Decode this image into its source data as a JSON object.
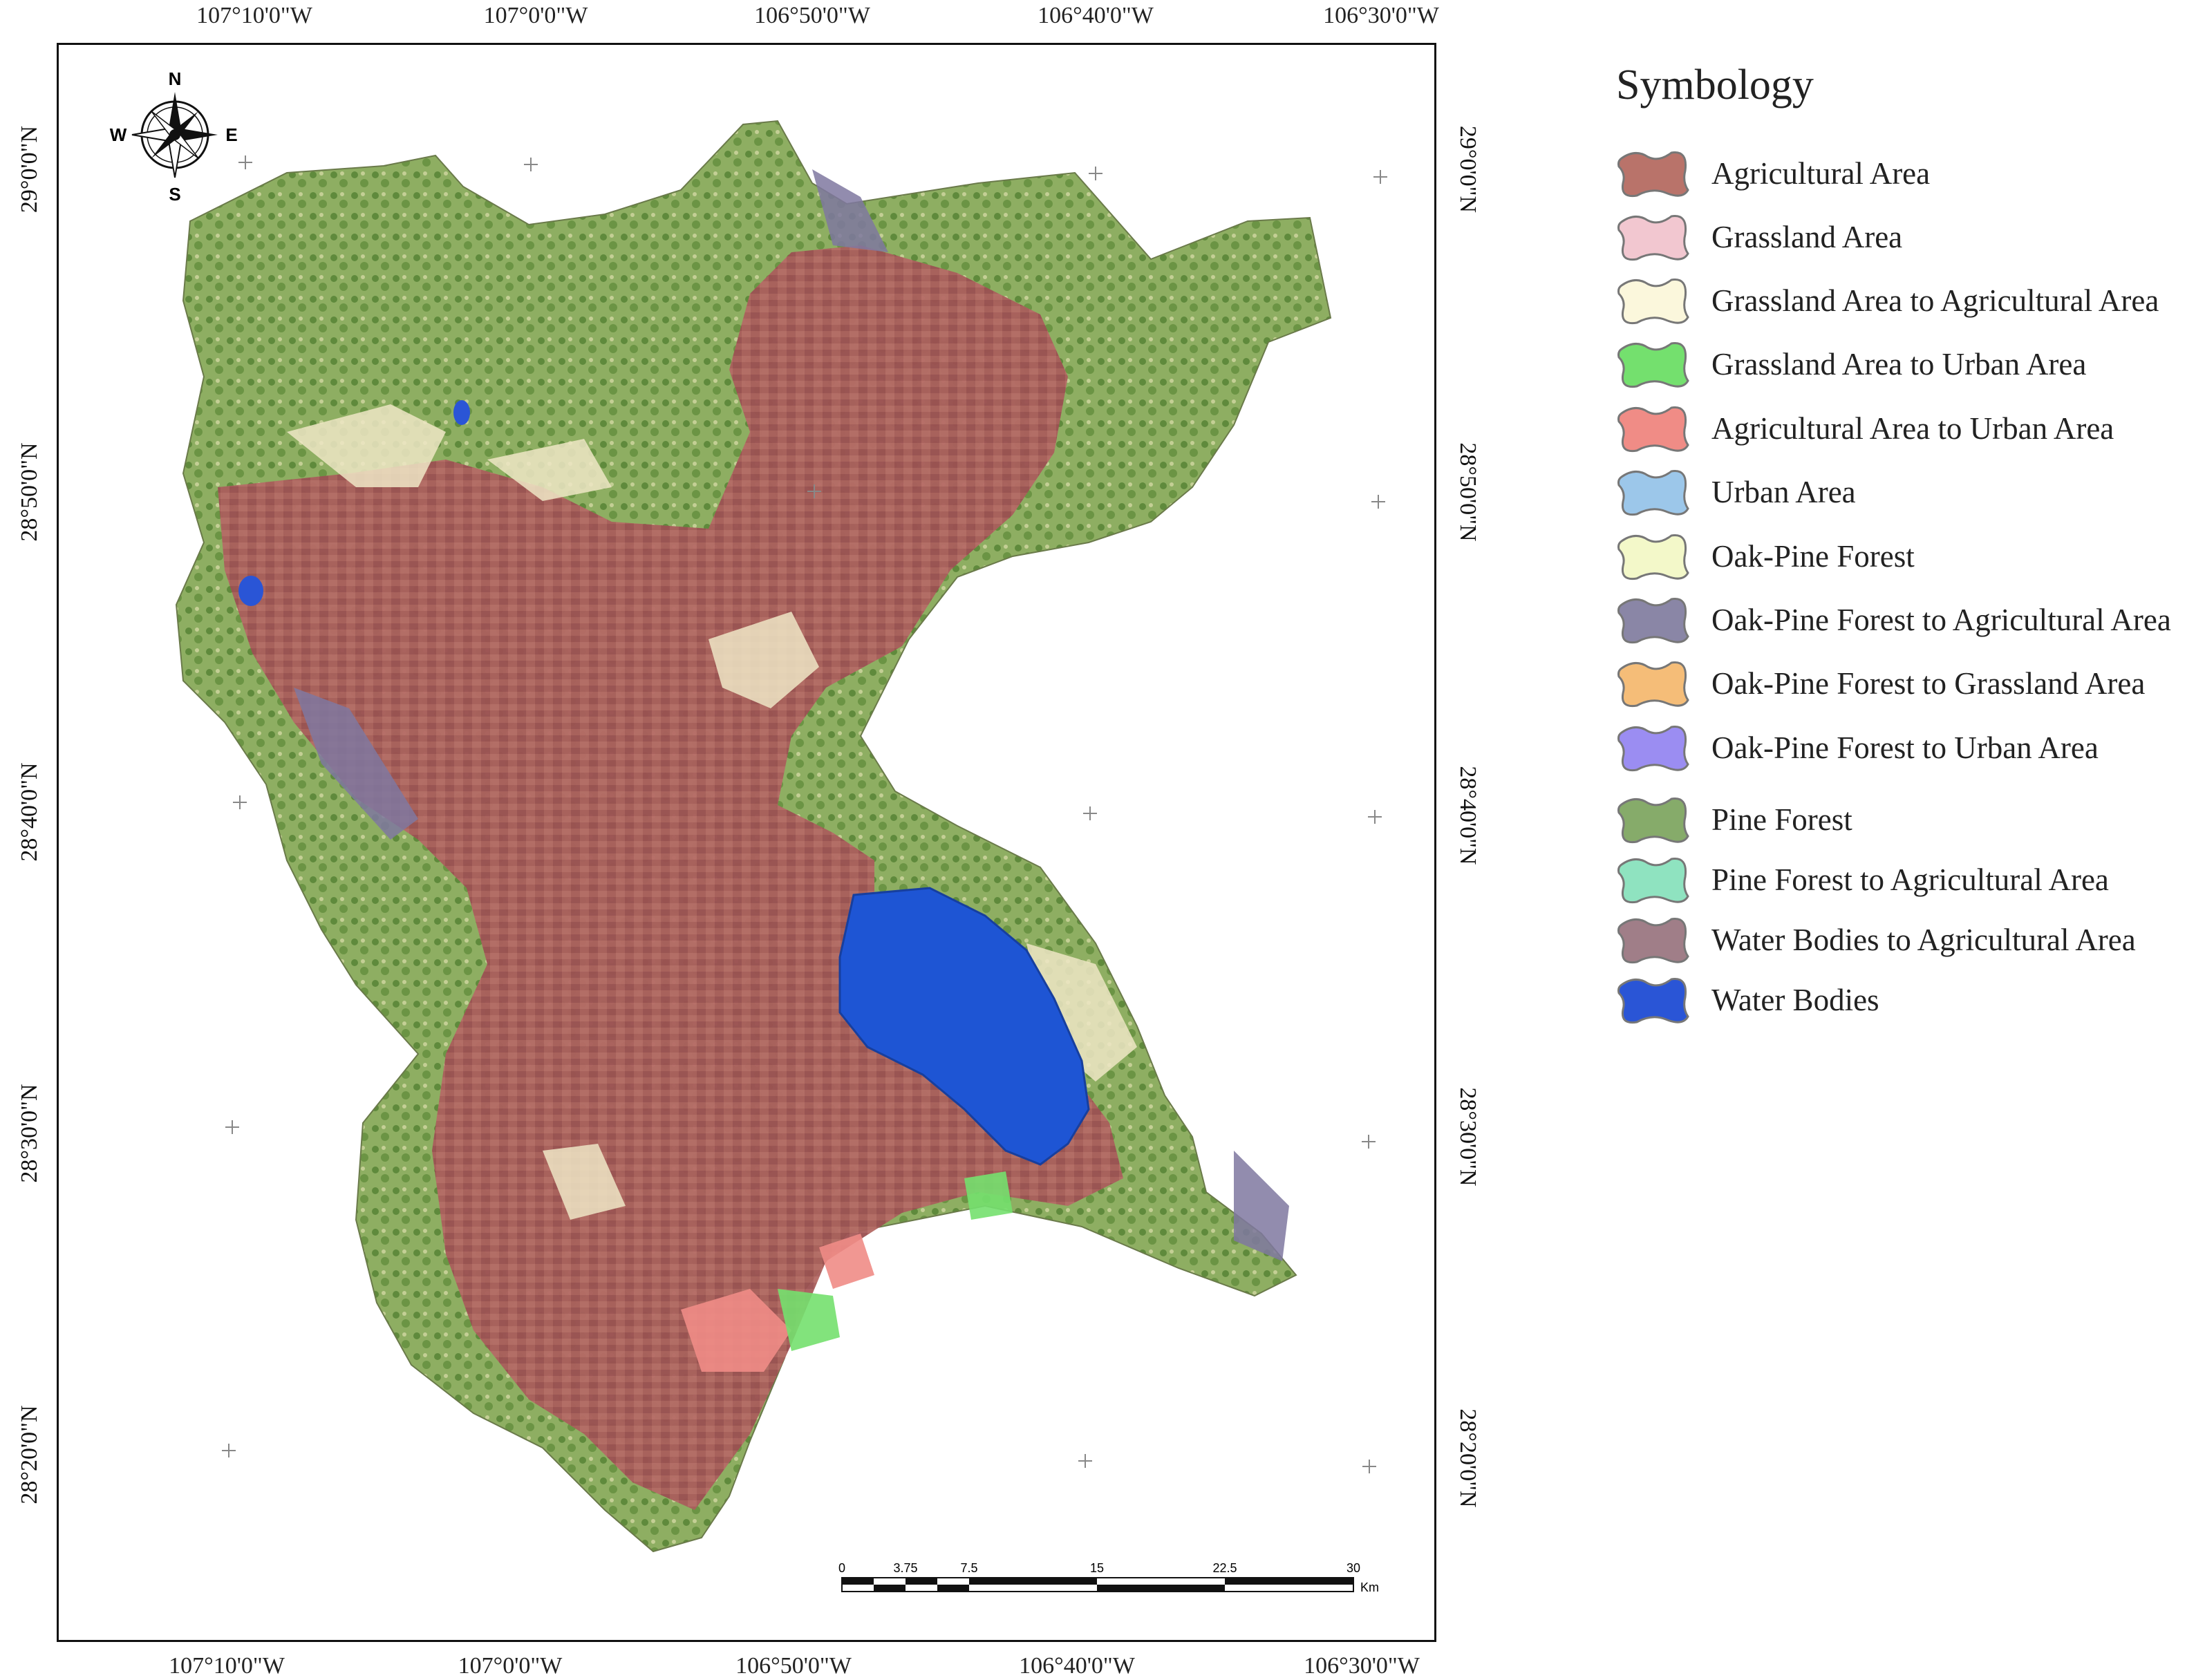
{
  "map": {
    "top_longitudes": [
      "107°10'0\"W",
      "107°0'0\"W",
      "106°50'0\"W",
      "106°40'0\"W",
      "106°30'0\"W"
    ],
    "bottom_longitudes": [
      "107°10'0\"W",
      "107°0'0\"W",
      "106°50'0\"W",
      "106°40'0\"W",
      "106°30'0\"W"
    ],
    "left_latitudes": [
      "29°0'0\"N",
      "28°50'0\"N",
      "28°40'0\"N",
      "28°30'0\"N",
      "28°20'0\"N"
    ],
    "right_latitudes": [
      "29°0'0\"N",
      "28°50'0\"N",
      "28°40'0\"N",
      "28°30'0\"N",
      "28°20'0\"N"
    ],
    "compass": {
      "n": "N",
      "s": "S",
      "e": "E",
      "w": "W"
    },
    "scale_bar": {
      "ticks": [
        "0",
        "3.75",
        "7.5",
        "15",
        "22.5",
        "30"
      ],
      "unit": "Km"
    }
  },
  "legend": {
    "title": "Symbology",
    "items": [
      {
        "label": "Agricultural Area",
        "color": "#b9736a"
      },
      {
        "label": "Grassland Area",
        "color": "#f2c7d0"
      },
      {
        "label": "Grassland Area to Agricultural Area",
        "color": "#fbf7dc"
      },
      {
        "label": "Grassland Area to Urban Area",
        "color": "#74e06e"
      },
      {
        "label": "Agricultural Area to Urban Area",
        "color": "#f08c86"
      },
      {
        "label": "Urban Area",
        "color": "#9cc7ea"
      },
      {
        "label": "Oak-Pine Forest",
        "color": "#f3f8c9"
      },
      {
        "label": "Oak-Pine Forest to Agricultural Area",
        "color": "#8a86a6"
      },
      {
        "label": "Oak-Pine Forest to Grassland Area",
        "color": "#f5bd78"
      },
      {
        "label": "Oak-Pine Forest  to Urban Area",
        "color": "#9b8df2"
      },
      {
        "label": "Pine Forest",
        "color": "#86ab6a"
      },
      {
        "label": "Pine Forest to Agricultural Area",
        "color": "#8fe3c0"
      },
      {
        "label": "Water Bodies to Agricultural Area",
        "color": "#a07e88"
      },
      {
        "label": "Water Bodies",
        "color": "#2a55d6"
      }
    ]
  }
}
